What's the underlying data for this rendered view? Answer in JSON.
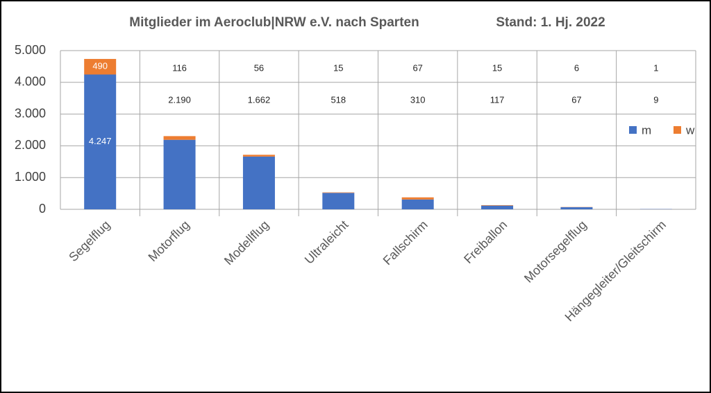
{
  "chart_data": {
    "type": "stacked_bar",
    "title": "Mitglieder im Aeroclub|NRW e.V. nach Sparten",
    "subtitle": "Stand: 1. Hj. 2022",
    "categories": [
      "Segelflug",
      "Motorflug",
      "Modellflug",
      "Ultraleicht",
      "Fallschirm",
      "Freiballon",
      "Motorsegelflug",
      "Hängegleiter/Gleitschirm"
    ],
    "series": [
      {
        "name": "m",
        "color": "#4472c4",
        "values": [
          4247,
          2190,
          1662,
          518,
          310,
          117,
          67,
          9
        ],
        "value_labels": [
          "4.247",
          "2.190",
          "1.662",
          "518",
          "310",
          "117",
          "67",
          "9"
        ]
      },
      {
        "name": "w",
        "color": "#ed7d31",
        "values": [
          490,
          116,
          56,
          15,
          67,
          15,
          6,
          1
        ]
      }
    ],
    "ylim": [
      0,
      5000
    ],
    "yticks": [
      0,
      {
        "value": 1000,
        "label": "1.000"
      },
      {
        "value": 2000,
        "label": "2.000"
      },
      {
        "value": 3000,
        "label": "3.000"
      },
      {
        "value": 4000,
        "label": "4.000"
      },
      {
        "value": 5000,
        "label": "5.000"
      }
    ],
    "grid": true,
    "legend": "right"
  }
}
